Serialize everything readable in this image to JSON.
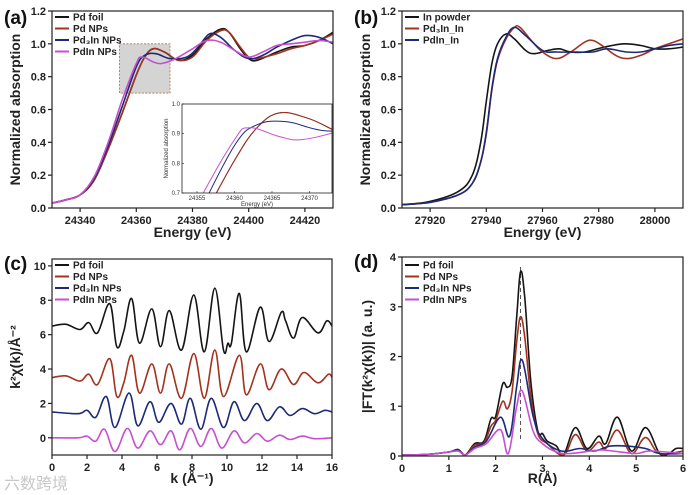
{
  "colors": {
    "black": "#151515",
    "red": "#a3321f",
    "blue": "#1c2a78",
    "magenta": "#c64fd0"
  },
  "watermark": "六数跨境",
  "chart_data": [
    {
      "panel": "(a)",
      "type": "line",
      "xlabel": "Energy (eV)",
      "ylabel": "Normalized absorption",
      "xlim": [
        24330,
        24430
      ],
      "ylim": [
        0,
        1.2
      ],
      "xticks": [
        24340,
        24360,
        24380,
        24400,
        24420
      ],
      "yticks": [
        0.0,
        0.2,
        0.4,
        0.6,
        0.8,
        1.0,
        1.2
      ],
      "ytick_labels": [
        "0.0",
        "0.2",
        "0.4",
        "0.6",
        "0.8",
        "1.0",
        "1.2"
      ],
      "legend": "top-left",
      "highlight_box": {
        "x": [
          24354,
          24372
        ],
        "y": [
          0.7,
          1.0
        ]
      },
      "series": [
        {
          "name": "Pd foil",
          "color": "black",
          "x": [
            24330,
            24335,
            24340,
            24345,
            24350,
            24355,
            24360,
            24363,
            24366,
            24370,
            24375,
            24380,
            24385,
            24390,
            24393,
            24397,
            24400,
            24403,
            24410,
            24415,
            24420,
            24425,
            24430
          ],
          "y": [
            0.03,
            0.05,
            0.08,
            0.17,
            0.36,
            0.58,
            0.81,
            0.92,
            0.97,
            0.95,
            0.9,
            0.93,
            1.03,
            1.09,
            1.07,
            0.97,
            0.91,
            0.9,
            0.95,
            0.98,
            0.99,
            1.02,
            1.07
          ]
        },
        {
          "name": "Pd NPs",
          "color": "red",
          "x": [
            24330,
            24335,
            24340,
            24345,
            24350,
            24355,
            24360,
            24363,
            24366,
            24370,
            24375,
            24380,
            24385,
            24390,
            24393,
            24397,
            24400,
            24403,
            24410,
            24415,
            24420,
            24425,
            24430
          ],
          "y": [
            0.03,
            0.05,
            0.08,
            0.17,
            0.36,
            0.58,
            0.81,
            0.92,
            0.97,
            0.95,
            0.9,
            0.92,
            1.02,
            1.08,
            1.07,
            0.98,
            0.92,
            0.91,
            0.94,
            0.97,
            0.99,
            1.02,
            1.06
          ]
        },
        {
          "name": "Pd₃In NPs",
          "color": "blue",
          "x": [
            24330,
            24335,
            24340,
            24345,
            24350,
            24355,
            24360,
            24363,
            24367,
            24372,
            24378,
            24382,
            24386,
            24390,
            24395,
            24400,
            24405,
            24410,
            24415,
            24420,
            24425,
            24430
          ],
          "y": [
            0.03,
            0.05,
            0.08,
            0.18,
            0.38,
            0.62,
            0.86,
            0.93,
            0.94,
            0.91,
            0.92,
            0.98,
            1.06,
            1.04,
            0.96,
            0.91,
            0.93,
            0.98,
            1.02,
            1.05,
            1.04,
            1.0
          ]
        },
        {
          "name": "PdIn NPs",
          "color": "magenta",
          "x": [
            24330,
            24335,
            24340,
            24345,
            24350,
            24355,
            24360,
            24362,
            24366,
            24369,
            24374,
            24380,
            24385,
            24390,
            24395,
            24400,
            24405,
            24410,
            24415,
            24420,
            24425,
            24430
          ],
          "y": [
            0.03,
            0.05,
            0.08,
            0.19,
            0.4,
            0.66,
            0.88,
            0.92,
            0.89,
            0.88,
            0.91,
            0.97,
            1.02,
            1.01,
            0.96,
            0.92,
            0.95,
            0.99,
            1.0,
            1.01,
            1.02,
            1.01
          ]
        }
      ],
      "inset": {
        "xlabel": "Energy (eV)",
        "ylabel": "Normalized absorption",
        "xlim": [
          24353,
          24373
        ],
        "ylim": [
          0.7,
          1.0
        ],
        "xticks": [
          24355,
          24360,
          24365,
          24370
        ],
        "yticks": [
          0.7,
          0.8,
          0.9,
          1.0
        ],
        "ytick_labels": [
          "0.7",
          "0.8",
          "0.9",
          "1.0"
        ]
      }
    },
    {
      "panel": "(b)",
      "type": "line",
      "xlabel": "Energy (eV)",
      "ylabel": "Normalized absorption",
      "xlim": [
        27910,
        28010
      ],
      "ylim": [
        0,
        1.2
      ],
      "xticks": [
        27920,
        27940,
        27960,
        27980,
        28000
      ],
      "yticks": [
        0.0,
        0.2,
        0.4,
        0.6,
        0.8,
        1.0,
        1.2
      ],
      "ytick_labels": [
        "0.0",
        "0.2",
        "0.4",
        "0.6",
        "0.8",
        "1.0",
        "1.2"
      ],
      "legend": "top-left",
      "series": [
        {
          "name": "In powder",
          "color": "black",
          "x": [
            27910,
            27920,
            27930,
            27935,
            27938,
            27940,
            27942,
            27944,
            27947,
            27950,
            27954,
            27957,
            27962,
            27966,
            27970,
            27975,
            27982,
            27989,
            27995,
            28000,
            28005,
            28010
          ],
          "y": [
            0.02,
            0.04,
            0.1,
            0.2,
            0.4,
            0.65,
            0.88,
            1.0,
            1.06,
            1.03,
            0.96,
            0.94,
            0.96,
            0.97,
            0.95,
            0.95,
            0.98,
            1.0,
            0.99,
            0.97,
            0.97,
            0.98
          ]
        },
        {
          "name": "Pd₃In_In",
          "color": "red",
          "x": [
            27910,
            27920,
            27930,
            27935,
            27938,
            27940,
            27942,
            27944,
            27947,
            27950,
            27952,
            27956,
            27960,
            27965,
            27970,
            27975,
            27978,
            27982,
            27986,
            27990,
            27995,
            28000,
            28005,
            28010
          ],
          "y": [
            0.02,
            0.035,
            0.08,
            0.15,
            0.28,
            0.45,
            0.72,
            0.9,
            1.03,
            1.1,
            1.1,
            1.02,
            0.95,
            0.91,
            0.95,
            1.01,
            1.02,
            0.98,
            0.93,
            0.91,
            0.93,
            0.97,
            1.0,
            1.03
          ]
        },
        {
          "name": "PdIn_In",
          "color": "blue",
          "x": [
            27910,
            27920,
            27930,
            27935,
            27938,
            27940,
            27942,
            27944,
            27947,
            27950,
            27954,
            27960,
            27965,
            27972,
            27978,
            27983,
            27990,
            27995,
            28000,
            28005,
            28010
          ],
          "y": [
            0.02,
            0.035,
            0.08,
            0.15,
            0.28,
            0.46,
            0.73,
            0.91,
            1.04,
            1.1,
            1.05,
            0.96,
            0.95,
            0.95,
            0.95,
            0.97,
            0.95,
            0.95,
            0.97,
            0.99,
            1.0
          ]
        }
      ]
    },
    {
      "panel": "(c)",
      "type": "line",
      "xlabel": "k (Å⁻¹)",
      "ylabel": "k²χ(k)/Å⁻²",
      "xlim": [
        0,
        16
      ],
      "ylim": [
        -1,
        10.4
      ],
      "xticks": [
        0,
        2,
        4,
        6,
        8,
        10,
        12,
        14,
        16
      ],
      "yticks": [
        0,
        2,
        4,
        6,
        8,
        10
      ],
      "ytick_labels": [
        "0",
        "2",
        "4",
        "6",
        "8",
        "10"
      ],
      "legend": "top-left",
      "series": [
        {
          "name": "Pd foil",
          "color": "black",
          "x": [
            0,
            0.8,
            1.6,
            2.1,
            2.6,
            3.3,
            3.7,
            4.1,
            4.55,
            5.0,
            5.7,
            6.2,
            6.7,
            7.4,
            8.1,
            8.7,
            9.3,
            9.8,
            10.05,
            10.25,
            10.7,
            11.1,
            11.9,
            12.4,
            13.1,
            13.35,
            13.8,
            14.3,
            15.2,
            15.7,
            16
          ],
          "y": [
            6.5,
            6.6,
            6.3,
            6.7,
            6.1,
            7.8,
            5.3,
            6.2,
            8.1,
            5.5,
            7.5,
            5.3,
            7.4,
            5.1,
            8.3,
            5.0,
            8.7,
            5.1,
            5.5,
            5.5,
            8.4,
            5.0,
            7.6,
            5.6,
            7.3,
            6.8,
            5.8,
            7.0,
            6.1,
            6.8,
            6.5
          ]
        },
        {
          "name": "Pd NPs",
          "color": "red",
          "x": [
            0,
            0.8,
            1.6,
            2.1,
            2.6,
            3.3,
            3.7,
            4.1,
            4.55,
            5.0,
            5.7,
            6.2,
            6.7,
            7.4,
            8.1,
            8.7,
            9.3,
            9.8,
            10.7,
            11.1,
            11.9,
            12.4,
            13.1,
            13.8,
            14.4,
            15.2,
            15.8,
            16
          ],
          "y": [
            3.5,
            3.6,
            3.3,
            3.7,
            3.1,
            4.6,
            2.4,
            3.2,
            4.8,
            2.6,
            4.3,
            2.6,
            4.3,
            2.3,
            4.9,
            2.3,
            5.1,
            2.4,
            4.8,
            2.5,
            4.3,
            2.8,
            4.0,
            3.1,
            3.8,
            3.2,
            3.7,
            3.5
          ]
        },
        {
          "name": "Pd₃In NPs",
          "color": "blue",
          "x": [
            0,
            1.5,
            2.0,
            2.5,
            3.1,
            3.6,
            4.4,
            4.9,
            5.6,
            6.1,
            6.8,
            7.4,
            7.9,
            8.5,
            9.1,
            9.8,
            10.4,
            11.0,
            11.7,
            12.3,
            13.0,
            13.6,
            14.3,
            15.0,
            15.6,
            16
          ],
          "y": [
            1.5,
            1.4,
            1.6,
            1.2,
            2.4,
            0.6,
            2.6,
            0.7,
            2.1,
            0.9,
            2.0,
            0.8,
            2.3,
            0.5,
            2.3,
            0.6,
            2.1,
            1.0,
            2.0,
            1.0,
            1.8,
            1.3,
            1.7,
            1.4,
            1.6,
            1.5
          ]
        },
        {
          "name": "PdIn NPs",
          "color": "magenta",
          "x": [
            0,
            1.5,
            2.0,
            2.5,
            3.0,
            3.6,
            4.3,
            4.9,
            5.6,
            6.2,
            6.8,
            7.3,
            7.9,
            8.5,
            9.1,
            9.7,
            10.4,
            11.0,
            11.7,
            12.3,
            13.0,
            13.6,
            14.3,
            15.0,
            16
          ],
          "y": [
            0,
            0,
            0.1,
            -0.2,
            0.5,
            -0.8,
            0.55,
            -0.6,
            0.4,
            -0.4,
            0.4,
            -0.7,
            0.55,
            -0.5,
            0.55,
            -0.6,
            0.4,
            -0.3,
            0.25,
            -0.2,
            0.15,
            -0.1,
            0.1,
            -0.05,
            0
          ]
        }
      ]
    },
    {
      "panel": "(d)",
      "type": "line",
      "xlabel": "R(Å)",
      "ylabel": "|FT(k²χ(k))| (a. u.)",
      "xlim": [
        0,
        6
      ],
      "ylim": [
        0,
        4
      ],
      "xticks": [
        0,
        1,
        2,
        3,
        4,
        5,
        6
      ],
      "yticks": [
        0,
        1,
        2,
        3,
        4
      ],
      "ytick_labels": [
        "0",
        "1",
        "2",
        "3",
        "4"
      ],
      "legend": "top-left",
      "reference_line": {
        "x": 2.53,
        "y": [
          0.3,
          3.8
        ]
      },
      "series": [
        {
          "name": "Pd foil",
          "color": "black",
          "x": [
            0,
            0.5,
            1.0,
            1.2,
            1.35,
            1.55,
            1.75,
            1.9,
            2.0,
            2.15,
            2.25,
            2.35,
            2.45,
            2.53,
            2.62,
            2.75,
            2.9,
            3.0,
            3.1,
            3.3,
            3.45,
            3.7,
            3.95,
            4.2,
            4.35,
            4.6,
            4.9,
            5.2,
            5.5,
            5.7,
            5.85,
            6
          ],
          "y": [
            0.02,
            0.03,
            0.08,
            0.13,
            0.02,
            0.25,
            0.3,
            0.75,
            0.8,
            1.45,
            1.38,
            1.6,
            2.8,
            3.7,
            3.2,
            1.5,
            0.5,
            0.45,
            0.3,
            0.2,
            0.02,
            0.57,
            0.15,
            0.4,
            0.25,
            0.78,
            0.1,
            0.57,
            0.05,
            0.05,
            0.15,
            0.15
          ]
        },
        {
          "name": "Pd NPs",
          "color": "red",
          "x": [
            0,
            0.5,
            1.0,
            1.2,
            1.35,
            1.55,
            1.75,
            1.9,
            2.0,
            2.15,
            2.25,
            2.35,
            2.45,
            2.53,
            2.62,
            2.75,
            2.9,
            3.1,
            3.45,
            3.7,
            3.95,
            4.2,
            4.35,
            4.6,
            4.9,
            5.2,
            5.5,
            6
          ],
          "y": [
            0.02,
            0.03,
            0.08,
            0.12,
            0.02,
            0.22,
            0.27,
            0.6,
            0.72,
            1.1,
            0.95,
            1.3,
            2.3,
            2.8,
            2.4,
            1.2,
            0.45,
            0.25,
            0.02,
            0.43,
            0.1,
            0.28,
            0.15,
            0.52,
            0.05,
            0.37,
            0.05,
            0.1
          ]
        },
        {
          "name": "Pd₃In NPs",
          "color": "blue",
          "x": [
            0,
            0.5,
            1.0,
            1.2,
            1.35,
            1.55,
            1.8,
            2.1,
            2.3,
            2.45,
            2.57,
            2.8,
            3.0,
            3.4,
            3.8,
            4.1,
            4.45,
            4.8,
            5.2,
            5.5,
            6
          ],
          "y": [
            0.02,
            0.03,
            0.08,
            0.12,
            0.02,
            0.18,
            0.3,
            0.78,
            0.4,
            1.4,
            1.92,
            0.8,
            0.35,
            0.1,
            0.15,
            0.1,
            0.2,
            0.2,
            0.15,
            0.05,
            0.05
          ]
        },
        {
          "name": "PdIn NPs",
          "color": "magenta",
          "x": [
            0,
            0.5,
            1.0,
            1.2,
            1.35,
            1.55,
            1.8,
            2.1,
            2.27,
            2.45,
            2.57,
            2.8,
            3.0,
            3.3,
            3.6,
            4.2,
            4.5,
            5.0,
            5.3,
            6
          ],
          "y": [
            0.02,
            0.03,
            0.08,
            0.1,
            0.02,
            0.15,
            0.25,
            0.53,
            0.05,
            1.0,
            1.3,
            0.5,
            0.25,
            0.08,
            0.05,
            0.12,
            0.1,
            0.05,
            0.1,
            0.05
          ]
        }
      ]
    }
  ]
}
